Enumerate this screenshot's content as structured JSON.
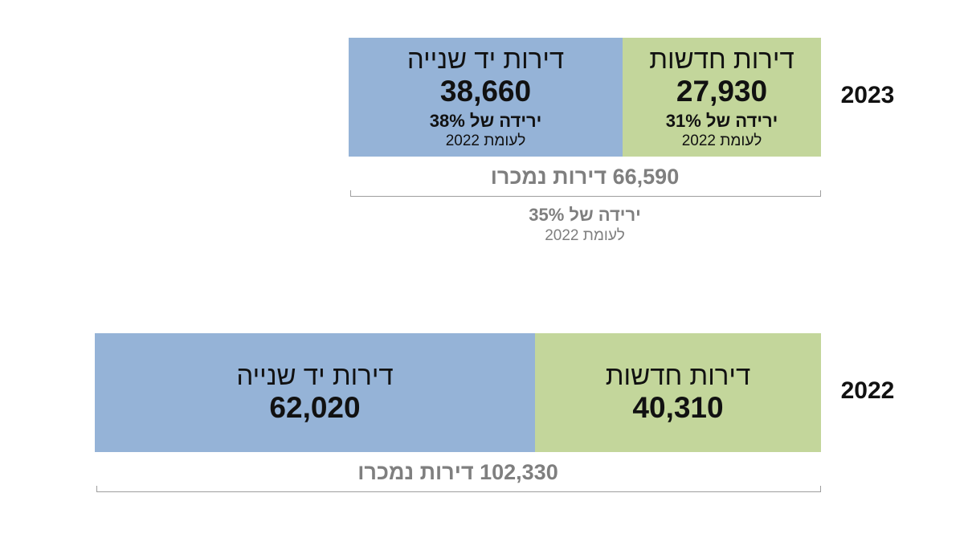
{
  "chart_data": {
    "type": "bar",
    "orientation": "horizontal-stacked",
    "unit": "דירות",
    "categories": [
      "2023",
      "2022"
    ],
    "series": [
      {
        "name": "דירות חדשות",
        "values": [
          27930,
          40310
        ],
        "color": "#c3d69b"
      },
      {
        "name": "דירות יד שנייה",
        "values": [
          38660,
          62020
        ],
        "color": "#95b3d7"
      }
    ],
    "rows": [
      {
        "year": "2023",
        "new_label": "דירות חדשות",
        "new_value": "27,930",
        "new_change": "ירידה של 31%",
        "new_note": "לעומת 2022",
        "used_label": "דירות יד שנייה",
        "used_value": "38,660",
        "used_change": "ירידה של 38%",
        "used_note": "לעומת 2022",
        "total_text": "66,590 דירות נמכרו",
        "total_change": "ירידה של 35%",
        "total_note": "לעומת 2022"
      },
      {
        "year": "2022",
        "new_label": "דירות חדשות",
        "new_value": "40,310",
        "used_label": "דירות יד שנייה",
        "used_value": "62,020",
        "total_text": "102,330 דירות נמכרו"
      }
    ],
    "totals": [
      66590,
      102330
    ],
    "xlim": [
      0,
      102330
    ],
    "grid": false,
    "title": "",
    "xlabel": "",
    "ylabel": ""
  }
}
